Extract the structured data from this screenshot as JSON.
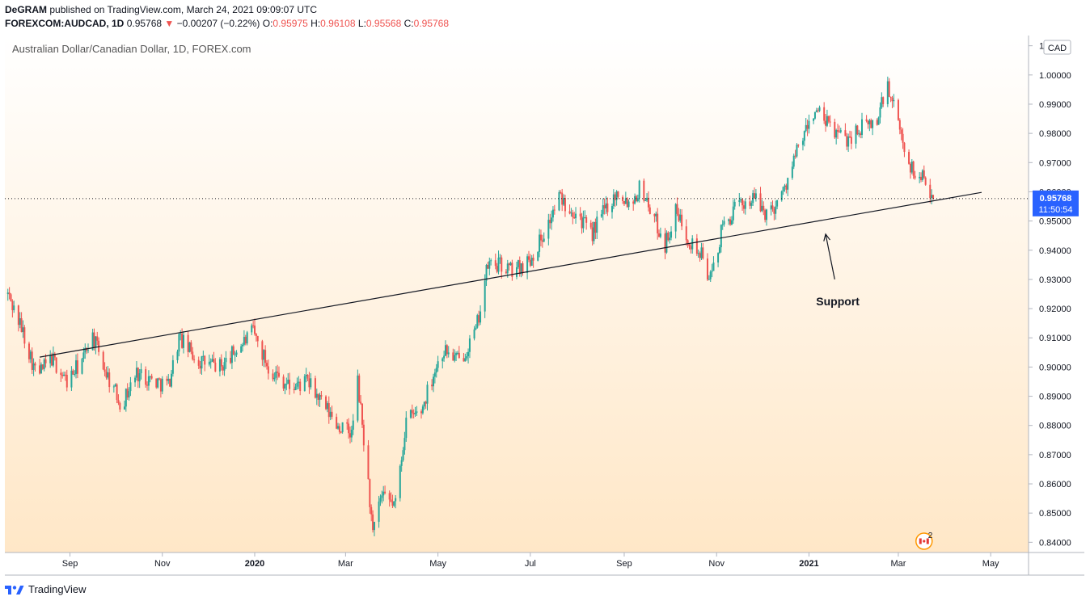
{
  "header": {
    "author": "DeGRAM",
    "published": "published on TradingView.com, March 24, 2021 09:09:07 UTC",
    "symbol": "FOREXCOM:AUDCAD, 1D",
    "last": "0.95768",
    "change_arrow": "▼",
    "change": "−0.00207 (−0.22%)",
    "o_label": "O:",
    "o": "0.95975",
    "h_label": "H:",
    "h": "0.96108",
    "l_label": "L:",
    "l": "0.95568",
    "c_label": "C:",
    "c": "0.95768"
  },
  "footer": {
    "brand": "TradingView",
    "logo_icon": "tradingview-logo-icon"
  },
  "chart_data": {
    "type": "candlestick",
    "title": "Australian Dollar/Canadian Dollar, 1D, FOREX.com",
    "currency": "CAD",
    "ylim": [
      0.8365,
      1.0135
    ],
    "y_ticks": [
      "0.84000",
      "0.85000",
      "0.86000",
      "0.87000",
      "0.88000",
      "0.89000",
      "0.90000",
      "0.91000",
      "0.92000",
      "0.93000",
      "0.94000",
      "0.95000",
      "0.96000",
      "0.97000",
      "0.98000",
      "0.99000",
      "1.00000",
      "1.01000"
    ],
    "x_ticks": [
      {
        "label": "Sep",
        "date": "2019-09-01",
        "bold": false
      },
      {
        "label": "Nov",
        "date": "2019-11-01",
        "bold": false
      },
      {
        "label": "2020",
        "date": "2020-01-01",
        "bold": true
      },
      {
        "label": "Mar",
        "date": "2020-03-01",
        "bold": false
      },
      {
        "label": "May",
        "date": "2020-05-01",
        "bold": false
      },
      {
        "label": "Jul",
        "date": "2020-07-01",
        "bold": false
      },
      {
        "label": "Sep",
        "date": "2020-09-01",
        "bold": false
      },
      {
        "label": "Nov",
        "date": "2020-11-01",
        "bold": false
      },
      {
        "label": "2021",
        "date": "2021-01-01",
        "bold": true
      },
      {
        "label": "Mar",
        "date": "2021-03-01",
        "bold": false
      },
      {
        "label": "May",
        "date": "2021-05-01",
        "bold": false
      }
    ],
    "x_range": [
      "2019-07-20",
      "2021-05-26"
    ],
    "path": [
      [
        "2019-07-22",
        0.925
      ],
      [
        "2019-08-01",
        0.912
      ],
      [
        "2019-08-10",
        0.897
      ],
      [
        "2019-08-20",
        0.903
      ],
      [
        "2019-08-30",
        0.895
      ],
      [
        "2019-09-10",
        0.903
      ],
      [
        "2019-09-15",
        0.912
      ],
      [
        "2019-09-25",
        0.898
      ],
      [
        "2019-10-05",
        0.887
      ],
      [
        "2019-10-15",
        0.898
      ],
      [
        "2019-10-28",
        0.895
      ],
      [
        "2019-11-05",
        0.894
      ],
      [
        "2019-11-12",
        0.91
      ],
      [
        "2019-11-25",
        0.902
      ],
      [
        "2019-12-10",
        0.9
      ],
      [
        "2019-12-20",
        0.906
      ],
      [
        "2019-12-31",
        0.912
      ],
      [
        "2020-01-10",
        0.9
      ],
      [
        "2020-01-25",
        0.893
      ],
      [
        "2020-02-05",
        0.895
      ],
      [
        "2020-02-15",
        0.887
      ],
      [
        "2020-02-25",
        0.88
      ],
      [
        "2020-03-05",
        0.877
      ],
      [
        "2020-03-09",
        0.895
      ],
      [
        "2020-03-16",
        0.86
      ],
      [
        "2020-03-19",
        0.842
      ],
      [
        "2020-03-24",
        0.855
      ],
      [
        "2020-04-03",
        0.853
      ],
      [
        "2020-04-10",
        0.882
      ],
      [
        "2020-04-20",
        0.885
      ],
      [
        "2020-04-28",
        0.898
      ],
      [
        "2020-05-05",
        0.906
      ],
      [
        "2020-05-15",
        0.902
      ],
      [
        "2020-05-26",
        0.912
      ],
      [
        "2020-06-03",
        0.935
      ],
      [
        "2020-06-10",
        0.935
      ],
      [
        "2020-06-20",
        0.933
      ],
      [
        "2020-07-01",
        0.937
      ],
      [
        "2020-07-12",
        0.948
      ],
      [
        "2020-07-20",
        0.958
      ],
      [
        "2020-07-27",
        0.955
      ],
      [
        "2020-08-01",
        0.953
      ],
      [
        "2020-08-10",
        0.945
      ],
      [
        "2020-08-20",
        0.955
      ],
      [
        "2020-08-28",
        0.96
      ],
      [
        "2020-09-05",
        0.956
      ],
      [
        "2020-09-12",
        0.962
      ],
      [
        "2020-09-20",
        0.952
      ],
      [
        "2020-09-28",
        0.942
      ],
      [
        "2020-10-05",
        0.953
      ],
      [
        "2020-10-15",
        0.943
      ],
      [
        "2020-10-22",
        0.938
      ],
      [
        "2020-10-28",
        0.93
      ],
      [
        "2020-11-05",
        0.948
      ],
      [
        "2020-11-15",
        0.955
      ],
      [
        "2020-11-25",
        0.958
      ],
      [
        "2020-12-05",
        0.952
      ],
      [
        "2020-12-15",
        0.96
      ],
      [
        "2020-12-25",
        0.975
      ],
      [
        "2021-01-05",
        0.988
      ],
      [
        "2021-01-15",
        0.982
      ],
      [
        "2021-01-25",
        0.978
      ],
      [
        "2021-02-05",
        0.982
      ],
      [
        "2021-02-15",
        0.984
      ],
      [
        "2021-02-21",
        0.997
      ],
      [
        "2021-02-28",
        0.985
      ],
      [
        "2021-03-05",
        0.975
      ],
      [
        "2021-03-12",
        0.965
      ],
      [
        "2021-03-18",
        0.966
      ],
      [
        "2021-03-24",
        0.9577
      ]
    ],
    "support_line": {
      "label": "Support",
      "from": [
        "2019-08-12",
        0.9034
      ],
      "to": [
        "2021-04-25",
        0.9598
      ]
    },
    "support_arrow": {
      "from": [
        "2021-01-18",
        0.93
      ],
      "to": [
        "2021-01-12",
        0.9455
      ]
    },
    "last_price": {
      "value": 0.95768,
      "label": "0.95768",
      "countdown": "11:50:54",
      "color": "#2962ff"
    },
    "events_badge": {
      "flag_icon": "canada-flag-icon",
      "count": "2",
      "date": "2021-03-18"
    },
    "colors": {
      "up": "#26a69a",
      "down": "#ef5350",
      "wick_up": "#26a69a",
      "wick_down": "#ef5350",
      "bg_top": "#ffffff",
      "bg_bottom": "#ffe7c7"
    }
  }
}
